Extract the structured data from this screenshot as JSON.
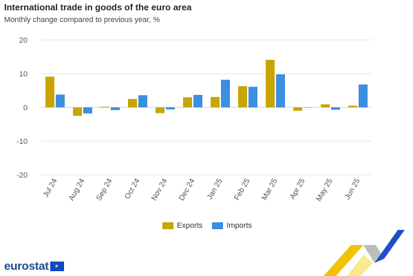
{
  "header": {
    "title": "International trade in goods of the euro area",
    "subtitle": "Monthly change compared to previous year, %"
  },
  "branding": {
    "logo_text": "eurostat"
  },
  "colors": {
    "exports": "#c8a500",
    "imports": "#3b8ee0",
    "grid": "#e3e3e3",
    "zero_line": "#cfcfcf"
  },
  "chart_data": {
    "type": "bar",
    "title": "International trade in goods of the euro area",
    "subtitle": "Monthly change compared to previous year, %",
    "categories": [
      "Jul 24",
      "Aug 24",
      "Sep 24",
      "Oct 24",
      "Nov 24",
      "Dec 24",
      "Jan 25",
      "Feb 25",
      "Mar 25",
      "Apr 25",
      "May 25",
      "Jun 25"
    ],
    "series": [
      {
        "name": "Exports",
        "values": [
          9.1,
          -2.5,
          0.2,
          2.5,
          -1.7,
          3.0,
          3.1,
          6.3,
          14.1,
          -1.0,
          0.9,
          0.5
        ]
      },
      {
        "name": "Imports",
        "values": [
          3.8,
          -1.8,
          -0.8,
          3.6,
          -0.6,
          3.7,
          8.2,
          6.1,
          9.8,
          0.0,
          -0.7,
          6.8
        ]
      }
    ],
    "ylim": [
      -20,
      20
    ],
    "yticks": [
      -20,
      -10,
      0,
      10,
      20
    ],
    "grid": true,
    "legend_position": "bottom"
  }
}
